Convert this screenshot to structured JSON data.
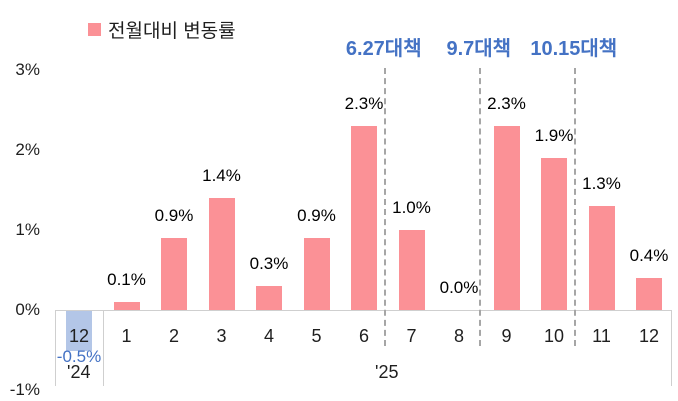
{
  "legend": {
    "label": "전월대비 변동률",
    "swatch_color": "#fb9196"
  },
  "chart_data": {
    "type": "bar",
    "title": "",
    "legend_position": "top",
    "grid": false,
    "categories": [
      "12",
      "1",
      "2",
      "3",
      "4",
      "5",
      "6",
      "7",
      "8",
      "9",
      "10",
      "11",
      "12"
    ],
    "series": [
      {
        "name": "전월대비 변동률",
        "values": [
          -0.5,
          0.1,
          0.9,
          1.4,
          0.3,
          0.9,
          2.3,
          1.0,
          0.0,
          2.3,
          1.9,
          1.3,
          0.4
        ]
      }
    ],
    "data_labels": [
      "-0.5%",
      "0.1%",
      "0.9%",
      "1.4%",
      "0.3%",
      "0.9%",
      "2.3%",
      "1.0%",
      "0.0%",
      "2.3%",
      "1.9%",
      "1.3%",
      "0.4%"
    ],
    "category_groups": [
      {
        "label": "'24",
        "span": 1
      },
      {
        "label": "'25",
        "span": 12
      }
    ],
    "ylim": [
      -1,
      3
    ],
    "yticks": [
      {
        "value": 3,
        "label": "3%"
      },
      {
        "value": 2,
        "label": "2%"
      },
      {
        "value": 1,
        "label": "1%"
      },
      {
        "value": 0,
        "label": "0%"
      },
      {
        "value": -1,
        "label": "-1%"
      }
    ],
    "annotations": [
      {
        "label": "6.27대책",
        "after_category_index": 6
      },
      {
        "label": "9.7대책",
        "after_category_index": 8
      },
      {
        "label": "10.15대책",
        "after_category_index": 10
      }
    ],
    "colors": {
      "positive_bar": "#fb9196",
      "negative_bar": "#b3c6e7",
      "annotation_text": "#4472c4",
      "dashed_line": "#a6a6a6",
      "axis_line": "#cfcfcf",
      "negative_label_text": "#4472c4"
    }
  }
}
